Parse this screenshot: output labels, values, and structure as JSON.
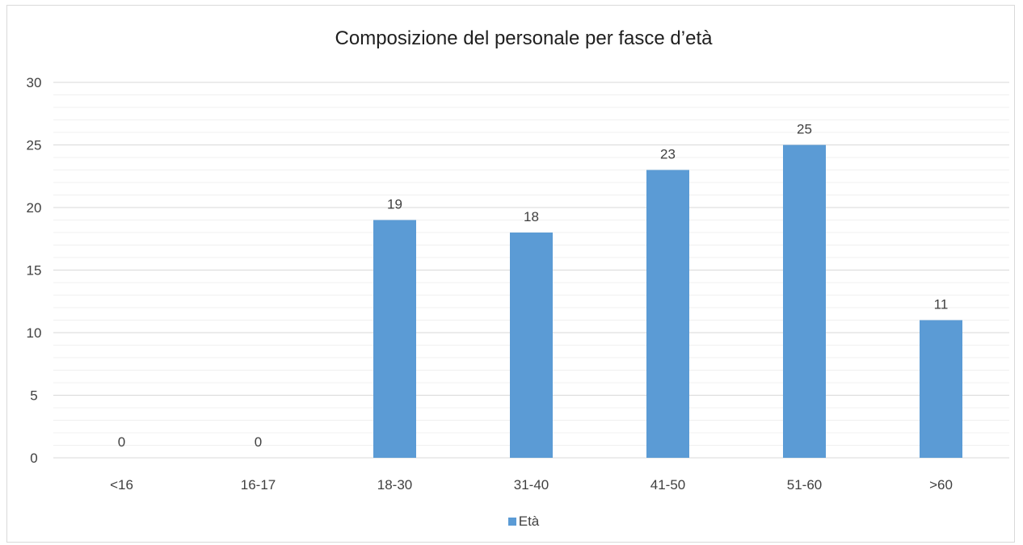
{
  "chart_data": {
    "type": "bar",
    "title": "Composizione del personale per fasce d’età",
    "categories": [
      "<16",
      "16-17",
      "18-30",
      "31-40",
      "41-50",
      "51-60",
      ">60"
    ],
    "series": [
      {
        "name": "Età",
        "values": [
          0,
          0,
          19,
          18,
          23,
          25,
          11
        ]
      }
    ],
    "ylim": [
      0,
      30
    ],
    "yticks": [
      0,
      5,
      10,
      15,
      20,
      25,
      30
    ],
    "minor_grid_step": 1,
    "grid": true,
    "legend_position": "bottom",
    "colors": {
      "bar": "#5b9bd5",
      "major_grid": "#d9d9d9",
      "minor_grid": "#f0f0f0",
      "text": "#404040"
    }
  }
}
